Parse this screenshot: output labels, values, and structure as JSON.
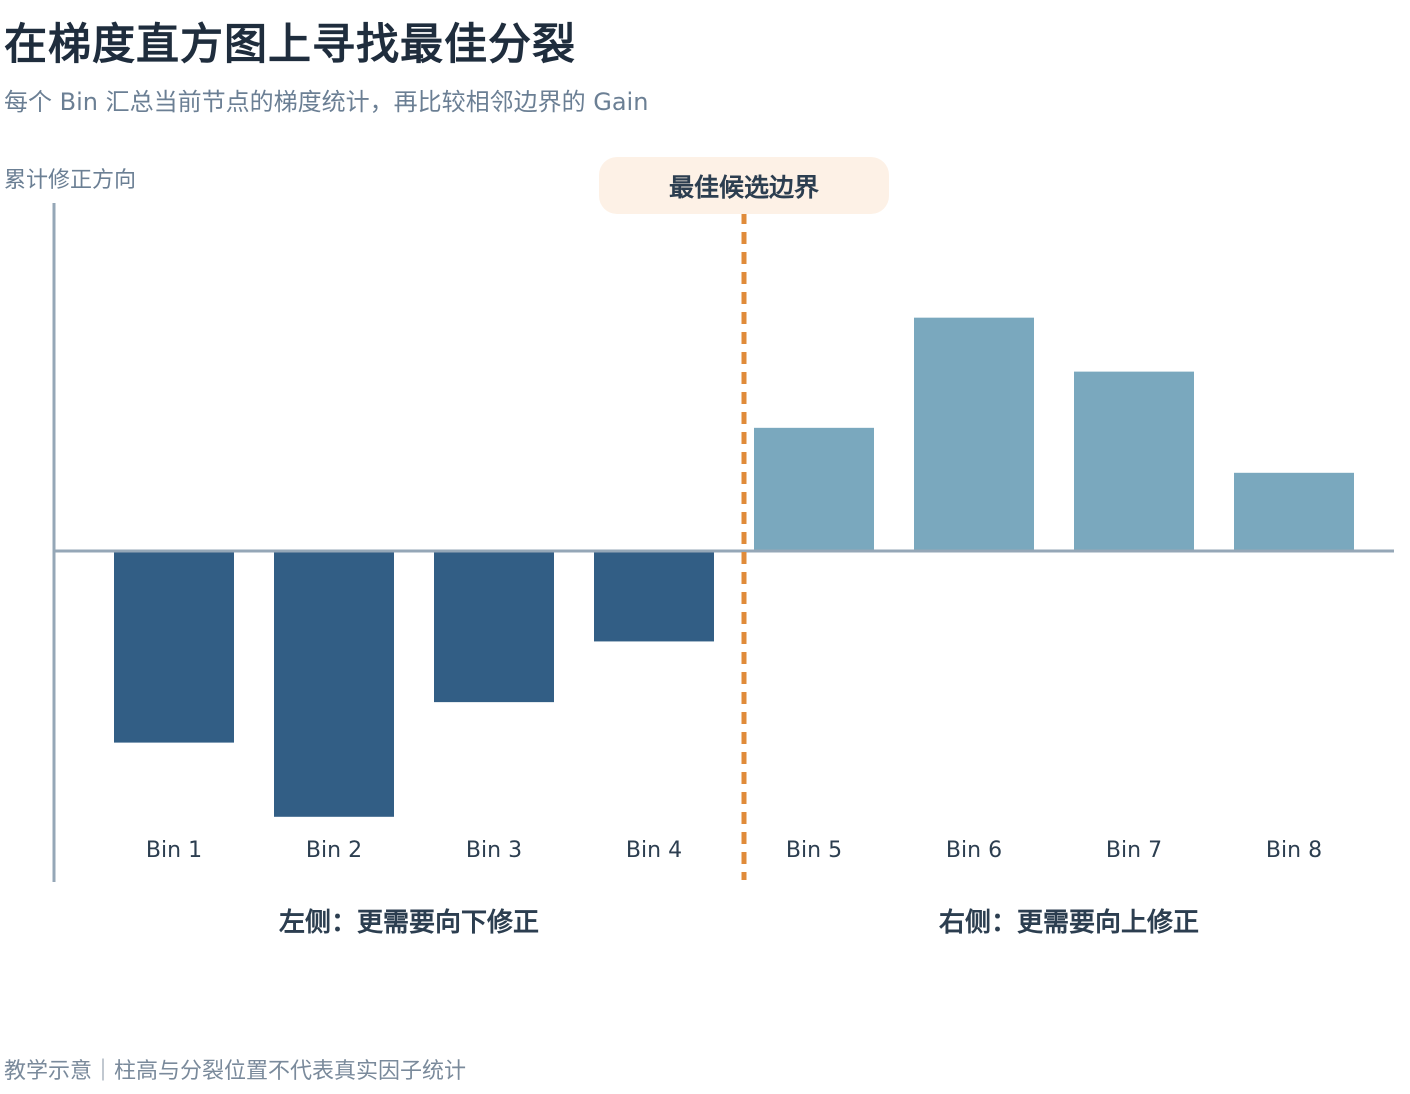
{
  "header": {
    "title": "在梯度直方图上寻找最佳分裂",
    "subtitle": "每个 Bin 汇总当前节点的梯度统计，再比较相邻边界的 Gain"
  },
  "footer": {
    "note": "教学示意｜柱高与分裂位置不代表真实因子统计"
  },
  "colors": {
    "negative": "#325e85",
    "positive": "#7aa8be",
    "split": "#e08b3a",
    "axis": "#95a7b7",
    "callout_bg": "#fdf1e6"
  },
  "chart_data": {
    "type": "bar",
    "ylabel": "累计修正方向",
    "categories": [
      "Bin 1",
      "Bin 2",
      "Bin 3",
      "Bin 4",
      "Bin 5",
      "Bin 6",
      "Bin 7",
      "Bin 8"
    ],
    "values": [
      -4.25,
      -5.9,
      -3.35,
      -2.0,
      2.75,
      5.2,
      4.0,
      1.75
    ],
    "ylim": [
      -7.35,
      7.75
    ],
    "split_after_index": 3,
    "split_label": "最佳候选边界",
    "left_label": "左侧：更需要向下修正",
    "right_label": "右侧：更需要向上修正"
  }
}
